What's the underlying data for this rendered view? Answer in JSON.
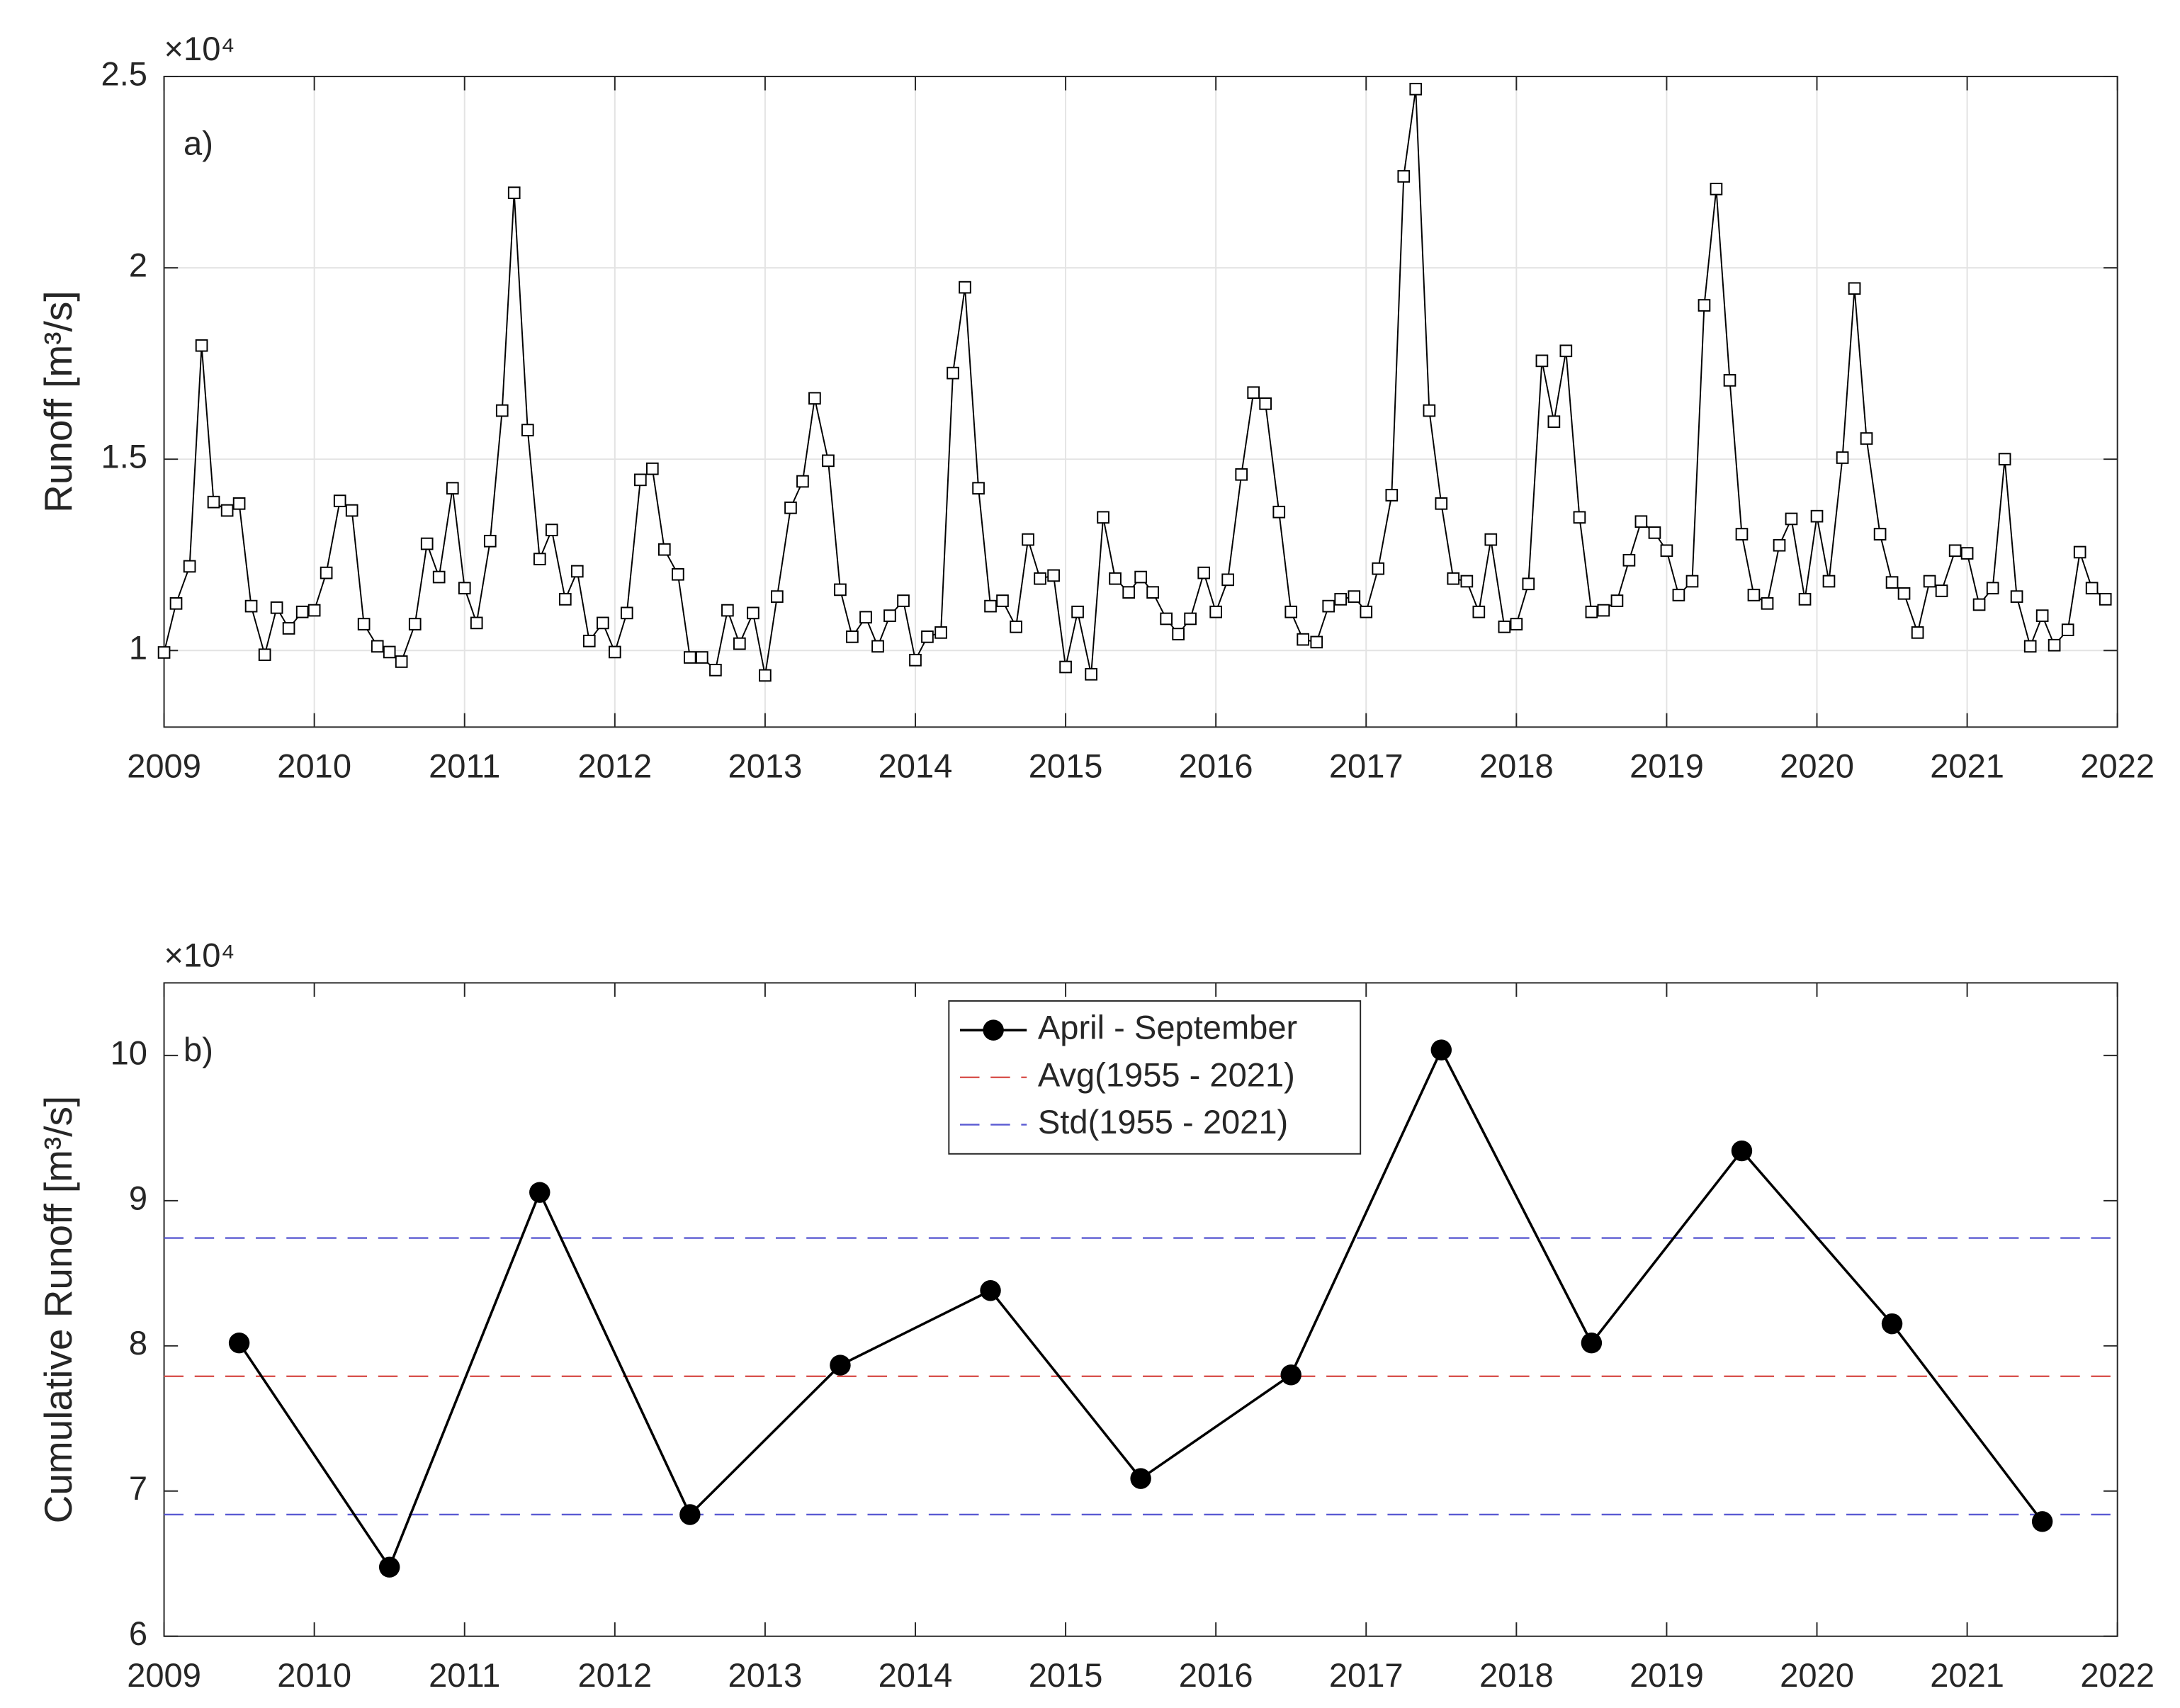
{
  "chart_data": [
    {
      "type": "line",
      "label": "a)",
      "ylabel": "Runoff [m³/s]",
      "y_multiplier": "×10⁴",
      "xlim": [
        2009,
        2022
      ],
      "xticks": [
        2009,
        2010,
        2011,
        2012,
        2013,
        2014,
        2015,
        2016,
        2017,
        2018,
        2019,
        2020,
        2021,
        2022
      ],
      "ylim": [
        8000,
        25000
      ],
      "yticks": [
        {
          "value": 10000,
          "label": "1"
        },
        {
          "value": 15000,
          "label": "1.5"
        },
        {
          "value": 20000,
          "label": "2"
        },
        {
          "value": 25000,
          "label": "2.5"
        }
      ],
      "grid": true,
      "x": [
        2009,
        2009.08,
        2009.17,
        2009.25,
        2009.33,
        2009.42,
        2009.5,
        2009.58,
        2009.67,
        2009.75,
        2009.83,
        2009.92,
        2010,
        2010.08,
        2010.17,
        2010.25,
        2010.33,
        2010.42,
        2010.5,
        2010.58,
        2010.67,
        2010.75,
        2010.83,
        2010.92,
        2011,
        2011.08,
        2011.17,
        2011.25,
        2011.33,
        2011.42,
        2011.5,
        2011.58,
        2011.67,
        2011.75,
        2011.83,
        2011.92,
        2012,
        2012.08,
        2012.17,
        2012.25,
        2012.33,
        2012.42,
        2012.5,
        2012.58,
        2012.67,
        2012.75,
        2012.83,
        2012.92,
        2013,
        2013.08,
        2013.17,
        2013.25,
        2013.33,
        2013.42,
        2013.5,
        2013.58,
        2013.67,
        2013.75,
        2013.83,
        2013.92,
        2014,
        2014.08,
        2014.17,
        2014.25,
        2014.33,
        2014.42,
        2014.5,
        2014.58,
        2014.67,
        2014.75,
        2014.83,
        2014.92,
        2015,
        2015.08,
        2015.17,
        2015.25,
        2015.33,
        2015.42,
        2015.5,
        2015.58,
        2015.67,
        2015.75,
        2015.83,
        2015.92,
        2016,
        2016.08,
        2016.17,
        2016.25,
        2016.33,
        2016.42,
        2016.5,
        2016.58,
        2016.67,
        2016.75,
        2016.83,
        2016.92,
        2017,
        2017.08,
        2017.17,
        2017.25,
        2017.33,
        2017.42,
        2017.5,
        2017.58,
        2017.67,
        2017.75,
        2017.83,
        2017.92,
        2018,
        2018.08,
        2018.17,
        2018.25,
        2018.33,
        2018.42,
        2018.5,
        2018.58,
        2018.67,
        2018.75,
        2018.83,
        2018.92,
        2019,
        2019.08,
        2019.17,
        2019.25,
        2019.33,
        2019.42,
        2019.5,
        2019.58,
        2019.67,
        2019.75,
        2019.83,
        2019.92,
        2020,
        2020.08,
        2020.17,
        2020.25,
        2020.33,
        2020.42,
        2020.5,
        2020.58,
        2020.67,
        2020.75,
        2020.83,
        2020.92,
        2021,
        2021.08,
        2021.17,
        2021.25,
        2021.33,
        2021.42,
        2021.5,
        2021.58,
        2021.67,
        2021.75,
        2021.83,
        2021.92
      ],
      "series": [
        {
          "color": "#000000",
          "marker": "square",
          "values": [
            9950,
            11230,
            12200,
            17970,
            13880,
            13660,
            13840,
            11160,
            9890,
            11120,
            10580,
            11010,
            11050,
            12030,
            13910,
            13660,
            10690,
            10110,
            9960,
            9710,
            10690,
            12790,
            11920,
            14240,
            11630,
            10720,
            12860,
            16270,
            21960,
            15760,
            12390,
            13150,
            11340,
            12070,
            10250,
            10720,
            9960,
            10980,
            14460,
            14750,
            12640,
            11990,
            9820,
            9820,
            9490,
            11050,
            10180,
            10980,
            9350,
            11410,
            13730,
            14420,
            16590,
            14960,
            11590,
            10360,
            10870,
            10110,
            10910,
            11300,
            9750,
            10360,
            10470,
            17250,
            19490,
            14240,
            11160,
            11300,
            10620,
            12900,
            11880,
            11960,
            9570,
            11010,
            9380,
            13480,
            11880,
            11520,
            11920,
            11520,
            10830,
            10430,
            10830,
            12030,
            11010,
            11850,
            14600,
            16740,
            16450,
            13620,
            11010,
            10290,
            10220,
            11160,
            11340,
            11410,
            11010,
            12140,
            14060,
            22390,
            24670,
            16270,
            13840,
            11880,
            11810,
            11010,
            12900,
            10620,
            10690,
            11740,
            17570,
            15980,
            17830,
            13480,
            11010,
            11050,
            11300,
            12360,
            13370,
            13080,
            12610,
            11450,
            11810,
            19020,
            22060,
            17060,
            13040,
            11450,
            11230,
            12750,
            13440,
            11340,
            13510,
            11810,
            15040,
            19460,
            15540,
            13040,
            11780,
            11490,
            10470,
            11810,
            11560,
            12610,
            12540,
            11200,
            11630,
            15000,
            11410,
            10110,
            10910,
            10140,
            10540,
            12570,
            11630,
            11340
          ]
        }
      ]
    },
    {
      "type": "line",
      "label": "b)",
      "ylabel": "Cumulative Runoff [m³/s]",
      "y_multiplier": "×10⁴",
      "xlim": [
        2009,
        2022
      ],
      "xticks": [
        2009,
        2010,
        2011,
        2012,
        2013,
        2014,
        2015,
        2016,
        2017,
        2018,
        2019,
        2020,
        2021,
        2022
      ],
      "ylim": [
        60000,
        105000
      ],
      "yticks": [
        {
          "value": 60000,
          "label": "6"
        },
        {
          "value": 70000,
          "label": "7"
        },
        {
          "value": 80000,
          "label": "8"
        },
        {
          "value": 90000,
          "label": "9"
        },
        {
          "value": 100000,
          "label": "10"
        }
      ],
      "grid": false,
      "legend": "north",
      "x": [
        2009.5,
        2010.5,
        2011.5,
        2012.5,
        2013.5,
        2014.5,
        2015.5,
        2016.5,
        2017.5,
        2018.5,
        2019.5,
        2020.5,
        2021.5
      ],
      "series": [
        {
          "name": "April - September",
          "color": "#000000",
          "marker": "circle",
          "values": [
            80200,
            64760,
            90570,
            68380,
            78670,
            83810,
            70860,
            78000,
            100380,
            80200,
            93430,
            81520,
            67900
          ]
        }
      ],
      "hlines": [
        {
          "name": "Avg(1955 - 2021)",
          "color": "#d9534f",
          "values": [
            77900
          ]
        },
        {
          "name": "Std(1955 - 2021)",
          "color": "#5a5ad2",
          "values": [
            87430,
            68380
          ]
        }
      ]
    }
  ]
}
